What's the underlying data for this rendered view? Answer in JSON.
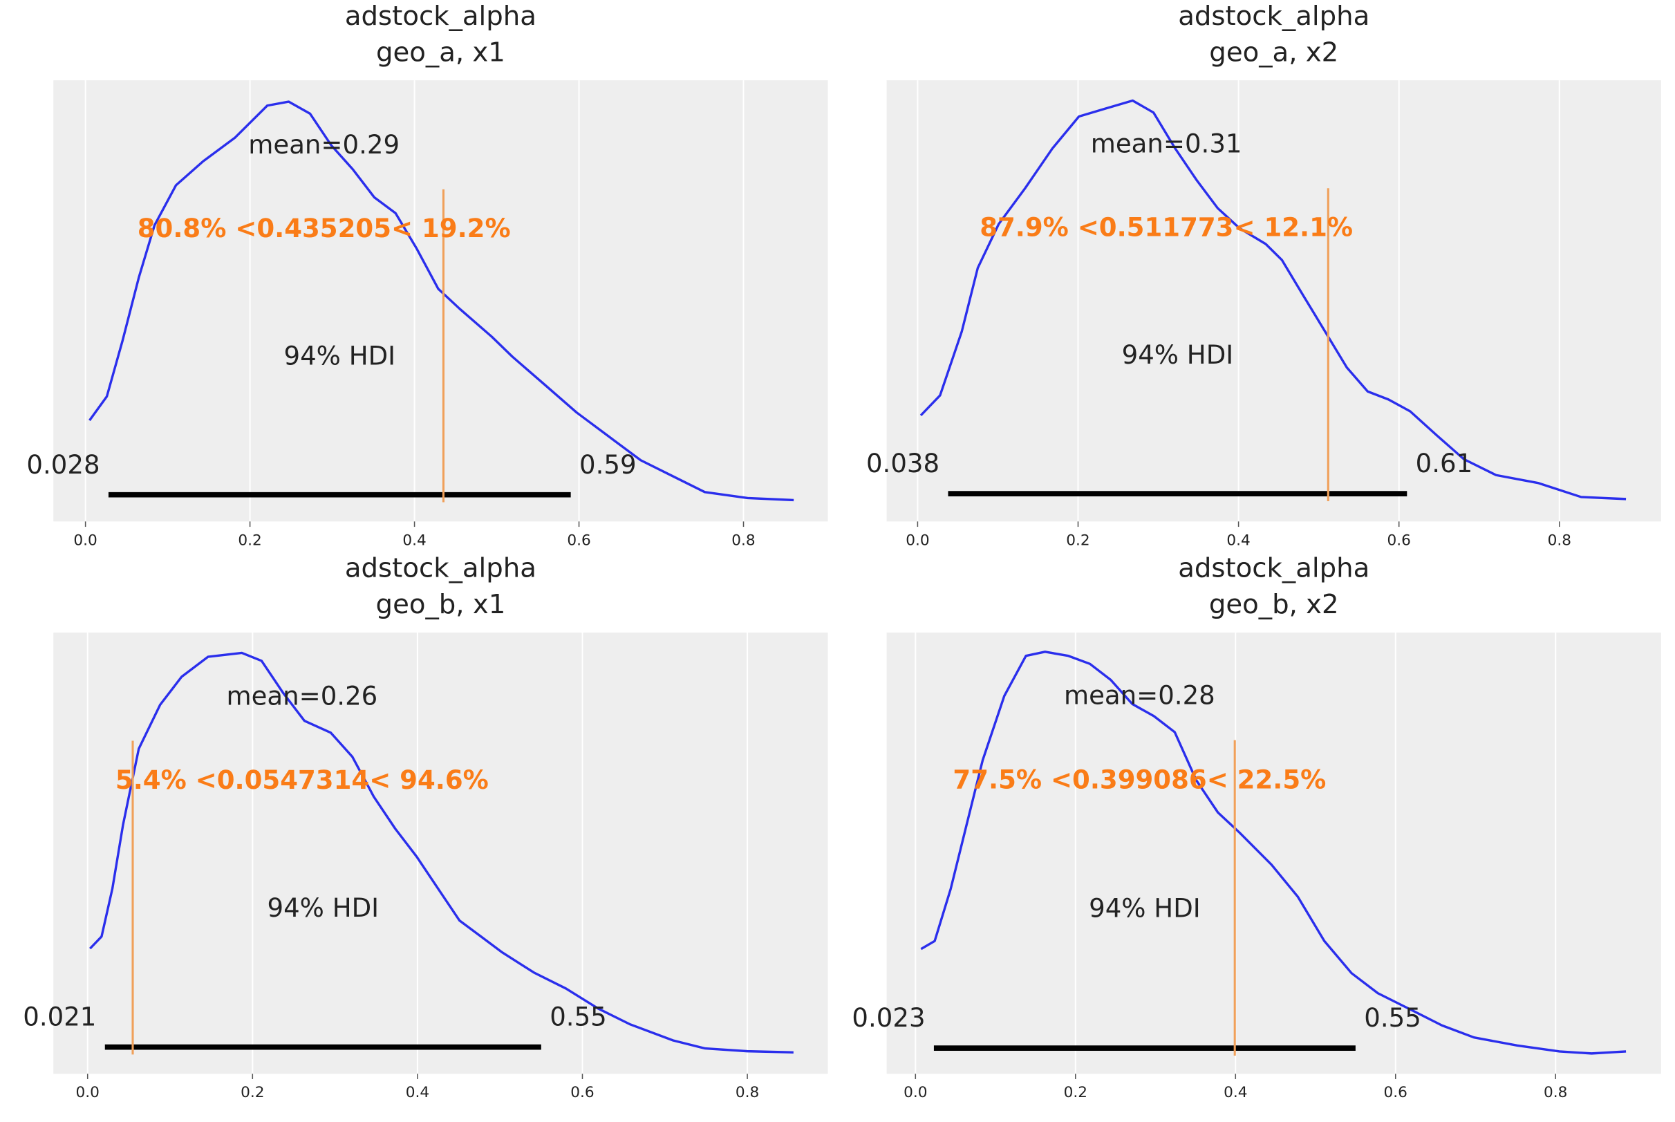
{
  "chart_data": [
    {
      "type": "line",
      "title": [
        "adstock_alpha",
        "geo_a, x1"
      ],
      "xticks": [
        "0.0",
        "0.2",
        "0.4",
        "0.6",
        "0.8"
      ],
      "xlim": [
        -0.04,
        0.9
      ],
      "grid": true,
      "mean_label": "mean=0.29",
      "mean": 0.29,
      "hdi_label": "94% HDI",
      "hdi": [
        0.028,
        0.59
      ],
      "hdi_labels": [
        "0.028",
        "0.59"
      ],
      "ref_val": 0.435205,
      "ref_label": "80.8% <0.435205< 19.2%",
      "kde_x": [
        0.005,
        0.026,
        0.045,
        0.065,
        0.084,
        0.11,
        0.143,
        0.182,
        0.221,
        0.247,
        0.273,
        0.299,
        0.325,
        0.351,
        0.377,
        0.403,
        0.429,
        0.455,
        0.494,
        0.519,
        0.558,
        0.597,
        0.636,
        0.675,
        0.714,
        0.753,
        0.805,
        0.861
      ],
      "kde_density_relative": [
        0.2,
        0.26,
        0.4,
        0.56,
        0.69,
        0.79,
        0.85,
        0.91,
        0.99,
        1.0,
        0.97,
        0.89,
        0.83,
        0.76,
        0.72,
        0.63,
        0.53,
        0.48,
        0.41,
        0.36,
        0.29,
        0.22,
        0.16,
        0.1,
        0.06,
        0.02,
        0.005,
        0
      ]
    },
    {
      "type": "line",
      "title": [
        "adstock_alpha",
        "geo_a, x2"
      ],
      "xticks": [
        "0.0",
        "0.2",
        "0.4",
        "0.6",
        "0.8"
      ],
      "xlim": [
        -0.04,
        0.93
      ],
      "grid": true,
      "mean_label": "mean=0.31",
      "mean": 0.31,
      "hdi_label": "94% HDI",
      "hdi": [
        0.038,
        0.61
      ],
      "hdi_labels": [
        "0.038",
        "0.61"
      ],
      "ref_val": 0.511773,
      "ref_label": "87.9% <0.511773< 12.1%",
      "kde_x": [
        0.004,
        0.028,
        0.055,
        0.075,
        0.101,
        0.134,
        0.168,
        0.201,
        0.234,
        0.268,
        0.294,
        0.321,
        0.348,
        0.374,
        0.401,
        0.434,
        0.454,
        0.481,
        0.508,
        0.535,
        0.561,
        0.587,
        0.614,
        0.647,
        0.681,
        0.721,
        0.774,
        0.827,
        0.883
      ],
      "kde_density_relative": [
        0.21,
        0.26,
        0.42,
        0.58,
        0.69,
        0.78,
        0.88,
        0.96,
        0.98,
        1.0,
        0.97,
        0.88,
        0.8,
        0.73,
        0.68,
        0.64,
        0.6,
        0.51,
        0.42,
        0.33,
        0.27,
        0.25,
        0.22,
        0.16,
        0.1,
        0.06,
        0.04,
        0.005,
        0
      ]
    },
    {
      "type": "line",
      "title": [
        "adstock_alpha",
        "geo_b, x1"
      ],
      "xticks": [
        "0.0",
        "0.2",
        "0.4",
        "0.6",
        "0.8"
      ],
      "xlim": [
        -0.04,
        0.9
      ],
      "grid": true,
      "mean_label": "mean=0.26",
      "mean": 0.26,
      "hdi_label": "94% HDI",
      "hdi": [
        0.021,
        0.55
      ],
      "hdi_labels": [
        "0.021",
        "0.55"
      ],
      "ref_val": 0.0547314,
      "ref_label": "5.4% <0.0547314< 94.6%",
      "kde_x": [
        0.003,
        0.017,
        0.03,
        0.043,
        0.062,
        0.088,
        0.114,
        0.146,
        0.187,
        0.211,
        0.237,
        0.263,
        0.295,
        0.321,
        0.347,
        0.373,
        0.399,
        0.425,
        0.451,
        0.477,
        0.503,
        0.541,
        0.58,
        0.619,
        0.658,
        0.71,
        0.749,
        0.8,
        0.856
      ],
      "kde_density_relative": [
        0.26,
        0.29,
        0.41,
        0.57,
        0.76,
        0.87,
        0.94,
        0.99,
        1.0,
        0.98,
        0.9,
        0.83,
        0.8,
        0.74,
        0.64,
        0.56,
        0.49,
        0.41,
        0.33,
        0.29,
        0.25,
        0.2,
        0.16,
        0.11,
        0.07,
        0.03,
        0.01,
        0.003,
        0
      ]
    },
    {
      "type": "line",
      "title": [
        "adstock_alpha",
        "geo_b, x2"
      ],
      "xticks": [
        "0.0",
        "0.2",
        "0.4",
        "0.6",
        "0.8"
      ],
      "xlim": [
        -0.04,
        0.93
      ],
      "grid": true,
      "mean_label": "mean=0.28",
      "mean": 0.28,
      "hdi_label": "94% HDI",
      "hdi": [
        0.023,
        0.55
      ],
      "hdi_labels": [
        "0.023",
        "0.55"
      ],
      "ref_val": 0.399086,
      "ref_label": "77.5% <0.399086< 22.5%",
      "kde_x": [
        0.007,
        0.024,
        0.044,
        0.064,
        0.084,
        0.111,
        0.138,
        0.162,
        0.191,
        0.218,
        0.244,
        0.271,
        0.298,
        0.324,
        0.351,
        0.378,
        0.405,
        0.445,
        0.478,
        0.511,
        0.545,
        0.578,
        0.618,
        0.658,
        0.698,
        0.752,
        0.805,
        0.845,
        0.888
      ],
      "kde_density_relative": [
        0.26,
        0.28,
        0.41,
        0.57,
        0.73,
        0.89,
        0.99,
        1.0,
        0.99,
        0.97,
        0.93,
        0.87,
        0.84,
        0.8,
        0.68,
        0.6,
        0.55,
        0.47,
        0.39,
        0.28,
        0.2,
        0.15,
        0.11,
        0.07,
        0.04,
        0.02,
        0.005,
        0,
        0.005
      ]
    }
  ],
  "colors": {
    "kde": "#2a2eec",
    "ref_line": "#f0a05a",
    "ref_text": "#fa7c17",
    "hdi_bar": "#000000",
    "axes_bg": "#eeeeee",
    "grid": "#ffffff"
  }
}
